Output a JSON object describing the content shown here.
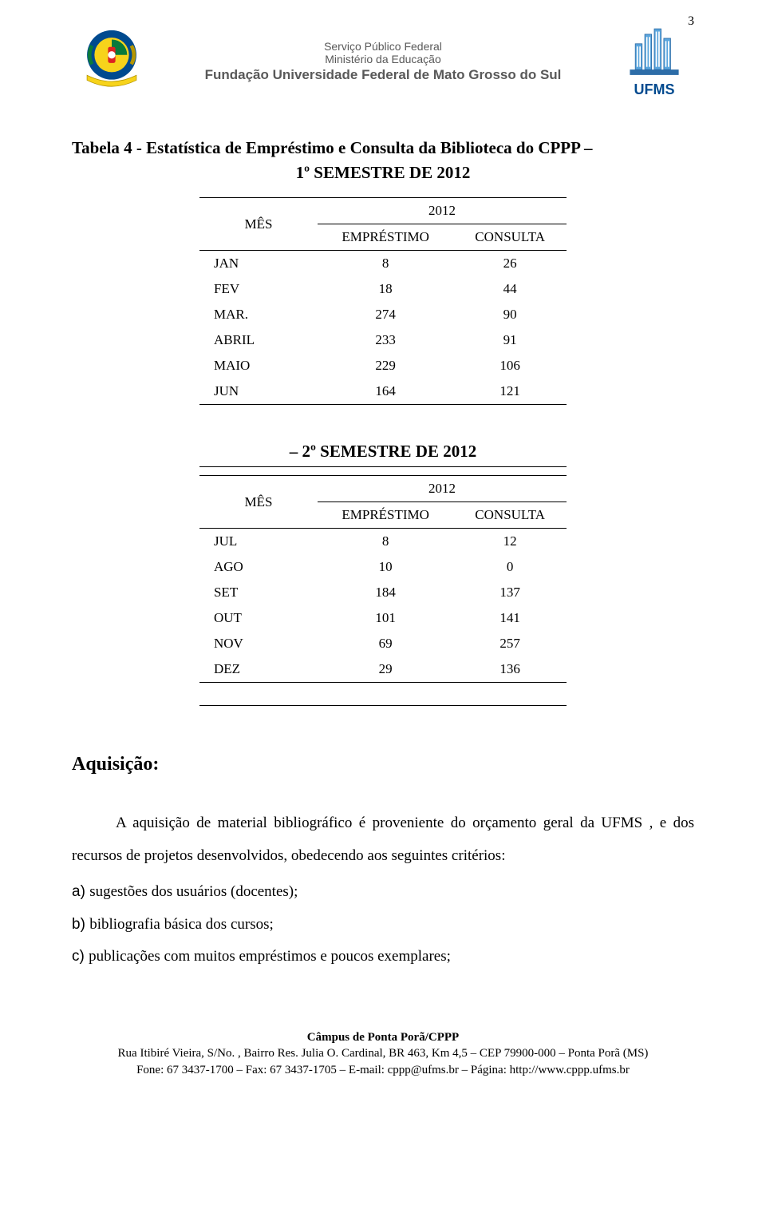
{
  "page_number": "3",
  "header": {
    "line1": "Serviço Público Federal",
    "line2": "Ministério da Educação",
    "line3": "Fundação Universidade Federal de Mato Grosso do Sul",
    "ufms_label": "UFMS",
    "coat_colors": {
      "blue": "#004a8f",
      "yellow": "#f7d31b",
      "green": "#0a7a3b",
      "red": "#d22"
    },
    "building_colors": {
      "fill": "#5aa5dd",
      "stroke": "#2d6da8"
    }
  },
  "title": "Tabela 4 -  Estatística de Empréstimo e Consulta da Biblioteca do CPPP –",
  "subtitle1": "1º SEMESTRE DE 2012",
  "subtitle2": "– 2º SEMESTRE DE 2012",
  "table1": {
    "mes_label": "MÊS",
    "year_label": "2012",
    "col_a": "EMPRÉSTIMO",
    "col_b": "CONSULTA",
    "rows": [
      {
        "m": "JAN",
        "a": "8",
        "b": "26"
      },
      {
        "m": "FEV",
        "a": "18",
        "b": "44"
      },
      {
        "m": "MAR.",
        "a": "274",
        "b": "90"
      },
      {
        "m": "ABRIL",
        "a": "233",
        "b": "91"
      },
      {
        "m": "MAIO",
        "a": "229",
        "b": "106"
      },
      {
        "m": "JUN",
        "a": "164",
        "b": "121"
      }
    ]
  },
  "table2": {
    "mes_label": "MÊS",
    "year_label": "2012",
    "col_a": "EMPRÉSTIMO",
    "col_b": "CONSULTA",
    "rows": [
      {
        "m": "JUL",
        "a": "8",
        "b": "12"
      },
      {
        "m": "AGO",
        "a": "10",
        "b": "0"
      },
      {
        "m": "SET",
        "a": "184",
        "b": "137"
      },
      {
        "m": "OUT",
        "a": "101",
        "b": "141"
      },
      {
        "m": "NOV",
        "a": "69",
        "b": "257"
      },
      {
        "m": "DEZ",
        "a": "29",
        "b": "136"
      }
    ]
  },
  "section_heading": "Aquisição:",
  "paragraph": "A aquisição de material bibliográfico é proveniente do orçamento geral da UFMS , e dos recursos de projetos desenvolvidos, obedecendo aos seguintes critérios:",
  "items": [
    {
      "lead": "a) ",
      "text": "sugestões dos usuários (docentes);"
    },
    {
      "lead": "b) ",
      "text": "bibliografia básica dos cursos;"
    },
    {
      "lead": "c) ",
      "text": "publicações com muitos empréstimos e poucos exemplares;"
    }
  ],
  "footer": {
    "line1": "Câmpus de Ponta Porã/CPPP",
    "line2": "Rua Itibiré Vieira, S/No. , Bairro Res. Julia O. Cardinal, BR 463, Km 4,5 – CEP 79900-000 – Ponta Porã (MS)",
    "line3": "Fone: 67 3437-1700 – Fax: 67 3437-1705 – E-mail: cppp@ufms.br – Página: http://www.cppp.ufms.br"
  }
}
